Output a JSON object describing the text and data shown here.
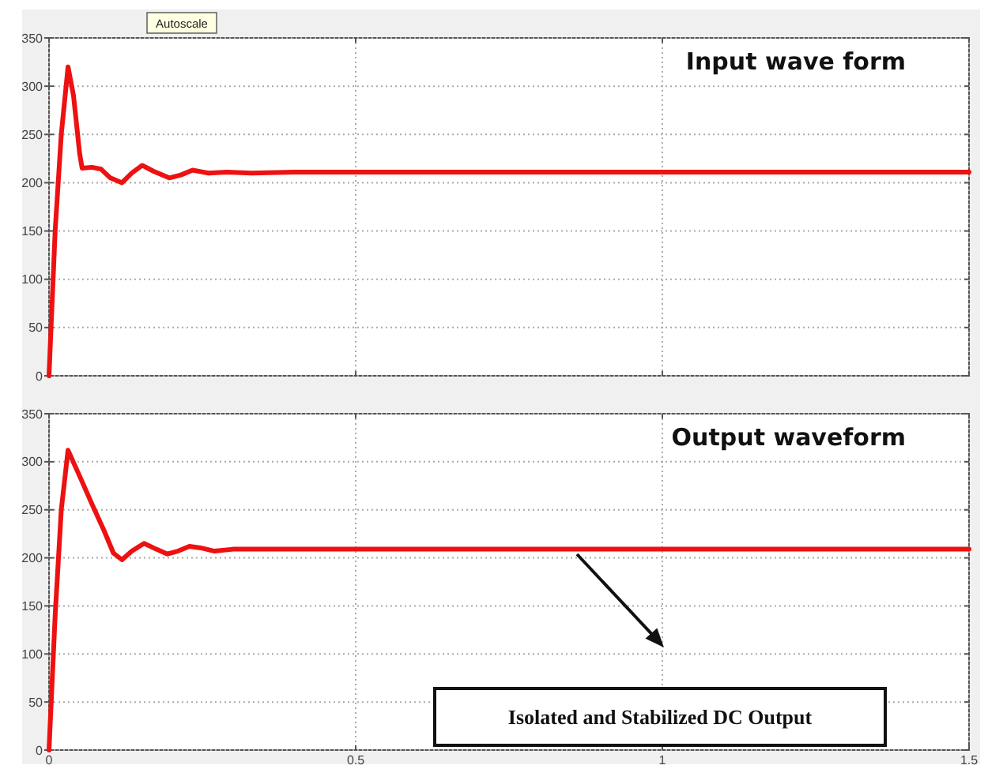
{
  "chart_data": [
    {
      "type": "line",
      "title": "Input wave form",
      "annotations": [
        "Autoscale"
      ],
      "x": [
        0,
        0.01,
        0.02,
        0.031,
        0.04,
        0.05,
        0.054,
        0.07,
        0.085,
        0.1,
        0.119,
        0.135,
        0.152,
        0.17,
        0.196,
        0.215,
        0.234,
        0.26,
        0.29,
        0.33,
        0.4,
        0.5,
        0.8,
        1.1,
        1.5
      ],
      "series": [
        {
          "color": "#ee1111",
          "values": [
            0,
            150,
            250,
            320,
            290,
            230,
            215,
            216,
            214,
            205,
            200,
            210,
            218,
            212,
            205,
            208,
            213,
            210,
            211,
            210,
            211,
            211,
            211,
            211,
            211
          ]
        }
      ],
      "xlim": [
        0,
        1.5
      ],
      "xticks": [
        0,
        0.5,
        1,
        1.5
      ],
      "ylim": [
        0,
        350
      ],
      "yticks": [
        0,
        50,
        100,
        150,
        200,
        250,
        300,
        350
      ],
      "tick_labels": "y",
      "grid": true,
      "line_style": "solid"
    },
    {
      "type": "line",
      "title": "Output waveform",
      "annotations": [
        "Isolated and Stabilized DC Output"
      ],
      "x": [
        0,
        0.01,
        0.02,
        0.031,
        0.05,
        0.07,
        0.09,
        0.105,
        0.119,
        0.135,
        0.155,
        0.175,
        0.193,
        0.21,
        0.229,
        0.25,
        0.27,
        0.3,
        0.35,
        0.45,
        0.6,
        0.9,
        1.2,
        1.5
      ],
      "series": [
        {
          "color": "#ee1111",
          "values": [
            0,
            140,
            250,
            312,
            285,
            256,
            228,
            205,
            198,
            207,
            215,
            209,
            204,
            207,
            212,
            210,
            207,
            209,
            209,
            209,
            209,
            209,
            209,
            209
          ]
        }
      ],
      "xlim": [
        0,
        1.5
      ],
      "xticks": [
        0,
        {
          "value": 0.5,
          "label": "0.5"
        },
        1,
        1.5
      ],
      "ylim": [
        0,
        350
      ],
      "yticks": [
        0,
        50,
        100,
        150,
        200,
        250,
        300,
        350
      ],
      "grid": true,
      "line_style": "solid"
    }
  ]
}
